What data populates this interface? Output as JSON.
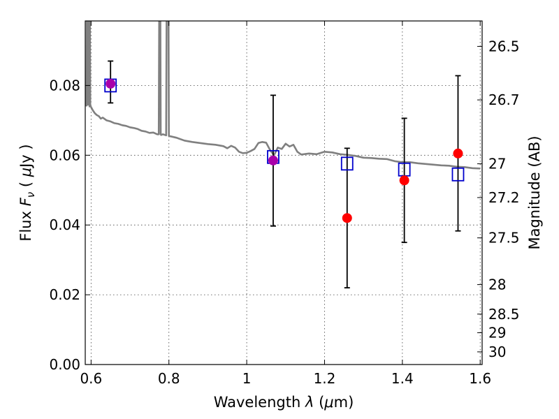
{
  "chart_data": {
    "type": "scatter",
    "xlabel": "Wavelength  λ (μm)",
    "ylabel": "Flux  Fν  ( μJy )",
    "ylabel_right": "Magnitude (AB)",
    "xlim": [
      0.585,
      1.605
    ],
    "ylim": [
      0.0,
      0.0985
    ],
    "x_ticks": [
      0.6,
      0.8,
      1.0,
      1.2,
      1.4,
      1.6
    ],
    "x_tick_labels": [
      "0.6",
      "0.8",
      "1",
      "1.2",
      "1.4",
      "1.6"
    ],
    "y_ticks": [
      0.0,
      0.02,
      0.04,
      0.06,
      0.08
    ],
    "y_tick_labels": [
      "0.00",
      "0.02",
      "0.04",
      "0.06",
      "0.08"
    ],
    "right_ticks": [
      {
        "mag": 26.5,
        "label": "26.5"
      },
      {
        "mag": 26.7,
        "label": "26.7"
      },
      {
        "mag": 27.0,
        "label": "27"
      },
      {
        "mag": 27.2,
        "label": "27.2"
      },
      {
        "mag": 27.5,
        "label": "27.5"
      },
      {
        "mag": 28.0,
        "label": "28"
      },
      {
        "mag": 28.5,
        "label": "28.5"
      },
      {
        "mag": 29.0,
        "label": "29"
      },
      {
        "mag": 30.0,
        "label": "30"
      }
    ],
    "grid": true,
    "colors": {
      "observed": "#ff0000",
      "model": "#0000cc",
      "overlap": "#aa00aa",
      "spectrum": "#808080",
      "errorbar": "#000000"
    },
    "observed": [
      {
        "x": 0.65,
        "y": 0.0805,
        "err_low": 0.0055,
        "err_high": 0.0065
      },
      {
        "x": 1.068,
        "y": 0.0585,
        "err_low": 0.0188,
        "err_high": 0.0187
      },
      {
        "x": 1.258,
        "y": 0.042,
        "err_low": 0.02,
        "err_high": 0.02
      },
      {
        "x": 1.405,
        "y": 0.0528,
        "err_low": 0.0178,
        "err_high": 0.0178
      },
      {
        "x": 1.543,
        "y": 0.0605,
        "err_low": 0.0222,
        "err_high": 0.0223
      }
    ],
    "model_points": [
      {
        "x": 0.65,
        "y": 0.08
      },
      {
        "x": 1.068,
        "y": 0.0595
      },
      {
        "x": 1.258,
        "y": 0.0576
      },
      {
        "x": 1.405,
        "y": 0.0559
      },
      {
        "x": 1.543,
        "y": 0.0545
      }
    ],
    "spectrum": {
      "x": [
        0.588,
        0.589,
        0.59,
        0.591,
        0.592,
        0.593,
        0.594,
        0.595,
        0.596,
        0.597,
        0.598,
        0.6,
        0.605,
        0.61,
        0.615,
        0.62,
        0.625,
        0.63,
        0.64,
        0.65,
        0.66,
        0.67,
        0.68,
        0.69,
        0.7,
        0.71,
        0.72,
        0.73,
        0.74,
        0.75,
        0.76,
        0.77,
        0.774,
        0.775,
        0.776,
        0.777,
        0.778,
        0.779,
        0.78,
        0.782,
        0.785,
        0.79,
        0.793,
        0.794,
        0.795,
        0.796,
        0.797,
        0.798,
        0.799,
        0.8,
        0.805,
        0.82,
        0.84,
        0.86,
        0.88,
        0.9,
        0.92,
        0.94,
        0.95,
        0.96,
        0.97,
        0.98,
        0.99,
        1.0,
        1.01,
        1.02,
        1.03,
        1.04,
        1.05,
        1.06,
        1.07,
        1.08,
        1.09,
        1.1,
        1.11,
        1.12,
        1.13,
        1.14,
        1.16,
        1.18,
        1.2,
        1.22,
        1.24,
        1.26,
        1.28,
        1.3,
        1.32,
        1.34,
        1.36,
        1.38,
        1.4,
        1.42,
        1.44,
        1.46,
        1.48,
        1.5,
        1.52,
        1.54,
        1.56,
        1.58,
        1.6
      ],
      "y": [
        0.074,
        0.0985,
        0.076,
        0.0985,
        0.0745,
        0.0985,
        0.075,
        0.0985,
        0.074,
        0.0985,
        0.0742,
        0.0738,
        0.0728,
        0.072,
        0.0715,
        0.0712,
        0.0705,
        0.0708,
        0.07,
        0.0697,
        0.0692,
        0.069,
        0.0686,
        0.0684,
        0.068,
        0.0678,
        0.0675,
        0.067,
        0.0668,
        0.0664,
        0.0665,
        0.066,
        0.066,
        0.0985,
        0.0985,
        0.0985,
        0.0985,
        0.066,
        0.0658,
        0.0659,
        0.066,
        0.0658,
        0.0657,
        0.0985,
        0.0985,
        0.0985,
        0.0985,
        0.0985,
        0.0985,
        0.0655,
        0.0654,
        0.065,
        0.0642,
        0.0638,
        0.0635,
        0.0632,
        0.063,
        0.0626,
        0.062,
        0.0627,
        0.0622,
        0.061,
        0.0606,
        0.0607,
        0.0612,
        0.0618,
        0.0635,
        0.0638,
        0.0636,
        0.0615,
        0.06,
        0.0622,
        0.0618,
        0.0633,
        0.0625,
        0.063,
        0.061,
        0.0602,
        0.0605,
        0.0603,
        0.061,
        0.0608,
        0.0603,
        0.0601,
        0.0598,
        0.0593,
        0.0592,
        0.059,
        0.0589,
        0.0583,
        0.058,
        0.058,
        0.0577,
        0.0575,
        0.0573,
        0.0571,
        0.057,
        0.0567,
        0.0566,
        0.0563,
        0.0562
      ]
    }
  }
}
